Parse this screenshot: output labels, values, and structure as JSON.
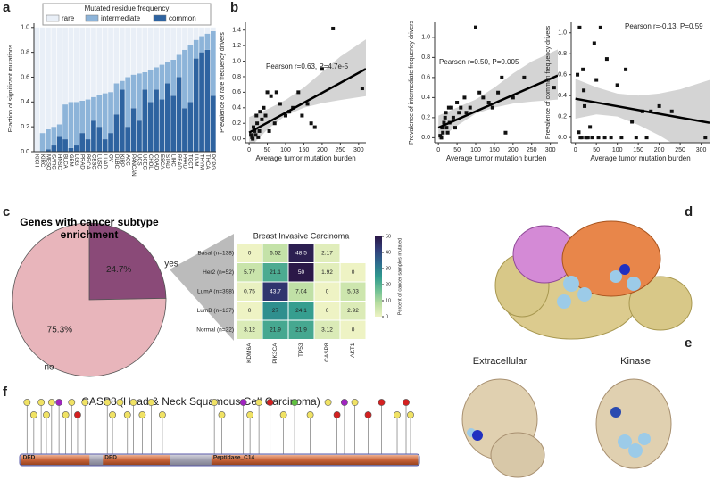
{
  "panel_labels": [
    "a",
    "b",
    "c",
    "d",
    "e",
    "f"
  ],
  "structure_labels": [
    "Extracellular",
    "Kinase"
  ],
  "chart_data": [
    {
      "type": "stacked_bar",
      "legend_title": "Mutated residue frequency",
      "ylabel": "Fraction of significant mutations",
      "categories": [
        "KICH",
        "KIRC",
        "MESO",
        "SARC",
        "HNSC",
        "BLCA",
        "GBM",
        "LGG",
        "PRAD",
        "BRCA",
        "CESC",
        "LUSC",
        "LUAD",
        "OV",
        "DLBC",
        "KIRP",
        "ACC",
        "PANCAN",
        "UCS",
        "UCEC",
        "CHOL",
        "COAD",
        "ESCA",
        "STAD",
        "LIHC",
        "READ",
        "PAAD",
        "TGCT",
        "UVM",
        "THYM",
        "THCA",
        "PCPG"
      ],
      "series": [
        {
          "name": "rare",
          "color": "#e9eff7",
          "values": [
            1.0,
            0.85,
            0.82,
            0.8,
            0.78,
            0.62,
            0.6,
            0.6,
            0.59,
            0.58,
            0.56,
            0.54,
            0.53,
            0.52,
            0.45,
            0.43,
            0.4,
            0.38,
            0.37,
            0.36,
            0.34,
            0.32,
            0.3,
            0.28,
            0.26,
            0.22,
            0.18,
            0.14,
            0.1,
            0.07,
            0.05,
            0.03
          ]
        },
        {
          "name": "intermediate",
          "color": "#8db4d9",
          "values": [
            0.0,
            0.15,
            0.16,
            0.15,
            0.1,
            0.28,
            0.37,
            0.35,
            0.26,
            0.32,
            0.19,
            0.26,
            0.37,
            0.33,
            0.25,
            0.07,
            0.4,
            0.27,
            0.38,
            0.14,
            0.26,
            0.18,
            0.28,
            0.17,
            0.29,
            0.18,
            0.47,
            0.46,
            0.15,
            0.13,
            0.13,
            0.52
          ]
        },
        {
          "name": "common",
          "color": "#2e63a0",
          "values": [
            0.0,
            0.0,
            0.02,
            0.05,
            0.12,
            0.1,
            0.03,
            0.05,
            0.15,
            0.1,
            0.25,
            0.2,
            0.1,
            0.15,
            0.3,
            0.5,
            0.2,
            0.35,
            0.25,
            0.5,
            0.4,
            0.5,
            0.42,
            0.55,
            0.45,
            0.6,
            0.35,
            0.4,
            0.75,
            0.8,
            0.82,
            0.45
          ]
        }
      ],
      "ylim": [
        0,
        1.02
      ],
      "yticks": [
        {
          "value": 0,
          "label": "0.0"
        },
        0.2,
        0.4,
        0.6,
        0.8,
        {
          "value": 1,
          "label": "1.0"
        }
      ]
    },
    {
      "type": "scatter",
      "xlabel": "Average tumor mutation burden",
      "ylabel": "Prevalence of rare frequency drivers",
      "annotation": "Pearson r=0.63, P=4.7e-5",
      "x": [
        5,
        8,
        10,
        12,
        15,
        18,
        20,
        22,
        25,
        28,
        30,
        35,
        40,
        45,
        50,
        55,
        60,
        70,
        75,
        85,
        100,
        110,
        120,
        135,
        145,
        160,
        170,
        180,
        200,
        230,
        310
      ],
      "y": [
        0.05,
        0.02,
        0.0,
        0.15,
        0.1,
        0.05,
        0.3,
        0.2,
        0.02,
        0.1,
        0.35,
        0.25,
        0.4,
        0.3,
        0.6,
        0.1,
        0.55,
        0.2,
        0.6,
        0.45,
        0.3,
        0.35,
        0.4,
        0.6,
        0.3,
        0.45,
        0.2,
        0.15,
        0.9,
        1.42,
        0.65
      ],
      "fit": {
        "x": [
          0,
          320
        ],
        "y": [
          0.08,
          0.9
        ]
      },
      "ci": {
        "x": [
          0,
          50,
          100,
          150,
          200,
          250,
          320
        ],
        "lower": [
          -0.12,
          0.12,
          0.3,
          0.4,
          0.46,
          0.5,
          0.55
        ],
        "upper": [
          0.28,
          0.38,
          0.5,
          0.66,
          0.86,
          1.06,
          1.28
        ]
      },
      "xlim": [
        -10,
        320
      ],
      "xticks": [
        0,
        50,
        100,
        150,
        200,
        250,
        300
      ],
      "ylim": [
        -0.05,
        1.5
      ],
      "yticks": [
        {
          "value": 0,
          "label": "0.0"
        },
        0.2,
        0.4,
        0.6,
        0.8,
        {
          "value": 1,
          "label": "1.0"
        },
        1.2,
        1.4
      ]
    },
    {
      "type": "scatter",
      "xlabel": "Average tumor mutation burden",
      "ylabel": "Prevalence of intermediate frequency drivers",
      "annotation": "Pearson r=0.50, P=0.005",
      "x": [
        5,
        8,
        10,
        12,
        15,
        18,
        20,
        22,
        25,
        28,
        30,
        35,
        40,
        45,
        50,
        55,
        60,
        70,
        75,
        85,
        100,
        110,
        120,
        135,
        145,
        160,
        170,
        180,
        200,
        230,
        310
      ],
      "y": [
        0.02,
        0.0,
        0.1,
        0.05,
        0.15,
        0.2,
        0.25,
        0.1,
        0.05,
        0.3,
        0.15,
        0.3,
        0.2,
        0.1,
        0.35,
        0.25,
        0.3,
        0.4,
        0.25,
        0.3,
        1.1,
        0.45,
        0.4,
        0.35,
        0.3,
        0.45,
        0.6,
        0.05,
        0.4,
        0.6,
        0.5
      ],
      "fit": {
        "x": [
          0,
          320
        ],
        "y": [
          0.1,
          0.62
        ]
      },
      "ci": {
        "x": [
          0,
          50,
          100,
          150,
          200,
          250,
          320
        ],
        "lower": [
          -0.02,
          0.12,
          0.24,
          0.3,
          0.34,
          0.36,
          0.38
        ],
        "upper": [
          0.22,
          0.3,
          0.38,
          0.5,
          0.64,
          0.76,
          0.88
        ]
      },
      "xlim": [
        -10,
        320
      ],
      "xticks": [
        0,
        50,
        100,
        150,
        200,
        250,
        300
      ],
      "ylim": [
        -0.05,
        1.15
      ],
      "yticks": [
        {
          "value": 0,
          "label": "0.0"
        },
        0.2,
        0.4,
        0.6,
        0.8,
        {
          "value": 1,
          "label": "1.0"
        }
      ]
    },
    {
      "type": "scatter",
      "xlabel": "Average tumor mutation burden",
      "ylabel": "Prevalence of common frequency drivers",
      "annotation": "Pearson r=-0.13, P=0.59",
      "x": [
        5,
        8,
        10,
        12,
        15,
        18,
        20,
        22,
        25,
        28,
        30,
        35,
        40,
        45,
        50,
        55,
        60,
        70,
        75,
        85,
        100,
        110,
        120,
        135,
        145,
        160,
        170,
        180,
        200,
        230,
        310
      ],
      "y": [
        0.6,
        0.05,
        1.05,
        0.0,
        0.0,
        0.65,
        0.45,
        0.3,
        0.0,
        0.0,
        0.0,
        0.1,
        0.0,
        0.9,
        0.55,
        0.0,
        1.05,
        0.0,
        0.75,
        0.0,
        0.5,
        0.0,
        0.65,
        0.15,
        0.0,
        0.25,
        0.0,
        0.25,
        0.3,
        0.25,
        0.0
      ],
      "fit": {
        "x": [
          0,
          320
        ],
        "y": [
          0.37,
          0.14
        ]
      },
      "ci": {
        "x": [
          0,
          50,
          100,
          150,
          200,
          250,
          320
        ],
        "lower": [
          0.18,
          0.22,
          0.2,
          0.12,
          0.02,
          -0.1,
          -0.25
        ],
        "upper": [
          0.56,
          0.48,
          0.42,
          0.4,
          0.42,
          0.46,
          0.55
        ]
      },
      "xlim": [
        -10,
        320
      ],
      "xticks": [
        0,
        50,
        100,
        150,
        200,
        250,
        300
      ],
      "ylim": [
        -0.05,
        1.1
      ],
      "yticks": [
        {
          "value": 0,
          "label": "0.0"
        },
        0.2,
        0.4,
        0.6,
        0.8,
        {
          "value": 1,
          "label": "1.0"
        }
      ]
    },
    {
      "type": "pie",
      "title": "Genes with cancer subtype enrichment",
      "categories": [
        "yes",
        "no"
      ],
      "values": [
        24.7,
        75.3
      ],
      "value_labels": [
        "24.7%",
        "75.3%"
      ],
      "colors": [
        "#8a4a78",
        "#e8b5bb"
      ]
    },
    {
      "type": "heatmap",
      "title": "Breast Invasive Carcinoma",
      "rows": [
        "Basal (n=138)",
        "Her2 (n=52)",
        "LumA (n=398)",
        "LumB (n=137)",
        "Normal (n=32)"
      ],
      "columns": [
        "KDM6A",
        "PIK3CA",
        "TP53",
        "CASP8",
        "AKT1"
      ],
      "values": [
        [
          0,
          6.52,
          48.5,
          2.17,
          null
        ],
        [
          5.77,
          21.1,
          50,
          1.92,
          0
        ],
        [
          0.75,
          43.7,
          7.04,
          0,
          5.03
        ],
        [
          0,
          27,
          24.1,
          0,
          2.92
        ],
        [
          3.12,
          21.9,
          21.9,
          3.12,
          0
        ]
      ],
      "colorbar_label": "Percent of cancer samples mutated",
      "clim": [
        0,
        50
      ],
      "cticks": [
        0,
        10,
        20,
        30,
        40,
        50
      ]
    },
    {
      "type": "lollipop",
      "title": "CASP8 (Head & Neck Squamous Cell Carcinoma)",
      "xlim": [
        0,
        538
      ],
      "domains": [
        {
          "name": "DED",
          "start": 2,
          "end": 94
        },
        {
          "name": "DED",
          "start": 112,
          "end": 202
        },
        {
          "name": "Peptidase_C14",
          "start": 258,
          "end": 536
        }
      ],
      "positions": [
        10,
        19,
        29,
        36,
        43,
        53,
        62,
        70,
        78,
        88,
        118,
        125,
        135,
        145,
        153,
        165,
        177,
        192,
        262,
        272,
        301,
        310,
        322,
        337,
        355,
        370,
        391,
        415,
        427,
        437,
        451,
        469,
        487,
        508,
        520,
        526
      ],
      "heights": [
        2,
        1,
        2,
        1,
        2,
        2,
        1,
        2,
        1,
        2,
        2,
        1,
        2,
        1,
        2,
        1,
        2,
        1,
        2,
        1,
        2,
        1,
        2,
        2,
        1,
        2,
        1,
        2,
        1,
        2,
        2,
        1,
        2,
        1,
        2,
        1
      ],
      "colors": [
        "#f0e264",
        "#f0e264",
        "#f0e264",
        "#f0e264",
        "#f0e264",
        "#a024c0",
        "#f0e264",
        "#f0e264",
        "#d42020",
        "#f0e264",
        "#f0e264",
        "#f0e264",
        "#f0e264",
        "#f0e264",
        "#f0e264",
        "#f0e264",
        "#f0e264",
        "#f0e264",
        "#f0e264",
        "#f0e264",
        "#a024c0",
        "#f0e264",
        "#f0e264",
        "#d42020",
        "#f0e264",
        "#60c040",
        "#f0e264",
        "#f0e264",
        "#d42020",
        "#a024c0",
        "#f0e264",
        "#d42020",
        "#d42020",
        "#f0e264",
        "#d42020",
        "#f0e264"
      ]
    }
  ]
}
